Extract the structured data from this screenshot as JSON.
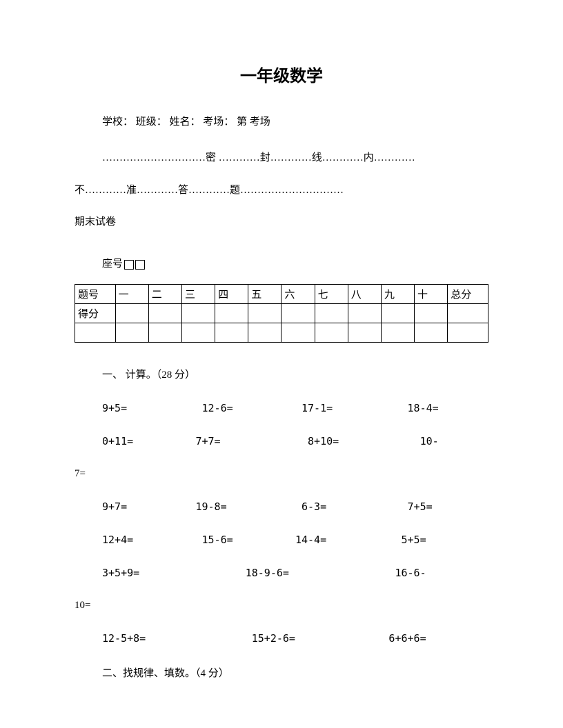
{
  "title": "一年级数学",
  "info_line": "学校：  班级：  姓名：  考场：  第  考场",
  "seal_line_1": "…………………………密  …………封…………线…………内…………",
  "seal_line_2": "不…………准…………答…………题…………………………",
  "exam_type": "期末试卷",
  "seat_label": "座号",
  "table": {
    "header_label": "题号",
    "score_label": "得分",
    "columns": [
      "一",
      "二",
      "三",
      "四",
      "五",
      "六",
      "七",
      "八",
      "九",
      "十",
      "总分"
    ]
  },
  "section1": {
    "title": "一、 计算。（28 分）",
    "rows": [
      "9+5=            12-6=           17-1=            18-4=",
      "0+11=          7+7=              8+10=             10-",
      "7=",
      "9+7=           19-8=            6-3=             7+5=",
      "12+4=           15-6=          14-4=            5+5=",
      "3+5+9=                 18-9-6=                 16-6-",
      "10=",
      "12-5+8=                 15+2-6=               6+6+6="
    ],
    "row_indents": [
      true,
      true,
      false,
      true,
      true,
      true,
      false,
      true
    ]
  },
  "section2": {
    "title": "二、找规律、填数。（4 分）"
  }
}
